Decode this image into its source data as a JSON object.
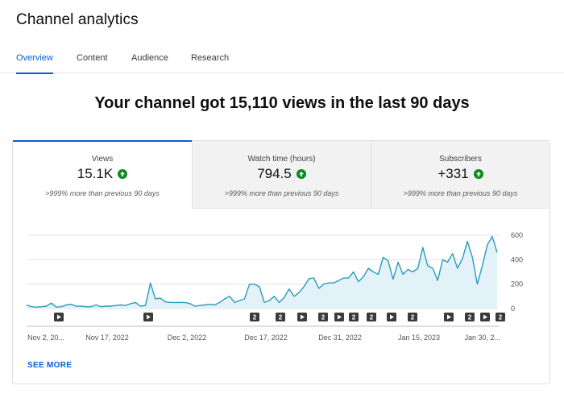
{
  "header": {
    "title": "Channel analytics"
  },
  "tabs": [
    {
      "label": "Overview",
      "active": true
    },
    {
      "label": "Content",
      "active": false
    },
    {
      "label": "Audience",
      "active": false
    },
    {
      "label": "Research",
      "active": false
    }
  ],
  "headline": "Your channel got 15,110 views in the last 90 days",
  "metrics": [
    {
      "label": "Views",
      "value": "15.1K",
      "sub": ">999% more than previous 90 days",
      "trend": "up",
      "selected": true
    },
    {
      "label": "Watch time (hours)",
      "value": "794.5",
      "sub": ">999% more than previous 90 days",
      "trend": "up",
      "selected": false
    },
    {
      "label": "Subscribers",
      "value": "+331",
      "sub": ">999% more than previous 90 days",
      "trend": "up",
      "selected": false
    }
  ],
  "colors": {
    "accent": "#065fd4",
    "trend_up": "#0a8a1e",
    "line": "#2a9bbd",
    "area": "#e3f1f8"
  },
  "chart_data": {
    "type": "area",
    "y_ticks": [
      0,
      200,
      400,
      600
    ],
    "ylim": [
      0,
      650
    ],
    "grid": true,
    "x_tick_labels": [
      "Nov 2, 20...",
      "Nov 17, 2022",
      "Dec 2, 2022",
      "Dec 17, 2022",
      "Dec 31, 2022",
      "Jan 15, 2023",
      "Jan 30, 2..."
    ],
    "values": [
      30,
      15,
      12,
      15,
      20,
      45,
      12,
      15,
      30,
      35,
      20,
      20,
      15,
      15,
      30,
      15,
      20,
      20,
      25,
      30,
      25,
      40,
      50,
      20,
      25,
      210,
      80,
      85,
      55,
      50,
      50,
      50,
      50,
      40,
      20,
      25,
      30,
      35,
      30,
      50,
      80,
      100,
      50,
      65,
      80,
      200,
      200,
      180,
      50,
      65,
      100,
      50,
      90,
      160,
      100,
      130,
      180,
      245,
      250,
      165,
      200,
      210,
      210,
      230,
      250,
      250,
      300,
      220,
      260,
      330,
      300,
      280,
      420,
      390,
      240,
      380,
      280,
      320,
      300,
      330,
      500,
      350,
      330,
      230,
      400,
      380,
      450,
      330,
      410,
      550,
      420,
      200,
      350,
      520,
      590,
      460
    ],
    "markers": [
      "play",
      "play",
      "2",
      "2",
      "play",
      "2",
      "play",
      "2",
      "2",
      "play",
      "2",
      "play",
      "2",
      "play",
      "2"
    ]
  },
  "footer": {
    "see_more": "SEE MORE"
  }
}
